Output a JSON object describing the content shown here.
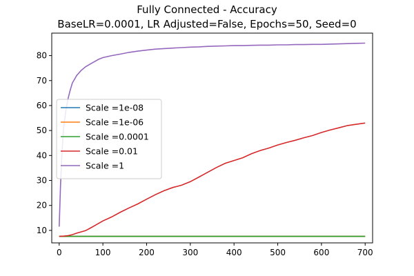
{
  "chart_data": {
    "type": "line",
    "title": "Fully Connected - Accuracy",
    "subtitle": "BaseLR=0.0001, LR Adjusted=False, Epochs=50, Seed=0",
    "xlabel": "",
    "ylabel": "",
    "xlim": [
      -17,
      717
    ],
    "ylim": [
      5.0,
      89.0
    ],
    "xticks": [
      0,
      100,
      200,
      300,
      400,
      500,
      600,
      700
    ],
    "yticks": [
      10,
      20,
      30,
      40,
      50,
      60,
      70,
      80
    ],
    "grid": false,
    "legend_position": "center-left",
    "series": [
      {
        "name": "Scale =1e-08",
        "color": "#1f77b4",
        "x": [
          0,
          700
        ],
        "y": [
          7.6,
          7.6
        ]
      },
      {
        "name": "Scale =1e-06",
        "color": "#ff7f0e",
        "x": [
          0,
          700
        ],
        "y": [
          7.6,
          7.6
        ]
      },
      {
        "name": "Scale =0.0001",
        "color": "#2ca02c",
        "x": [
          0,
          700
        ],
        "y": [
          7.6,
          7.6
        ]
      },
      {
        "name": "Scale =0.01",
        "color": "#d62728",
        "x": [
          0,
          10,
          20,
          30,
          40,
          50,
          60,
          70,
          80,
          90,
          100,
          120,
          140,
          160,
          180,
          200,
          220,
          240,
          260,
          280,
          300,
          320,
          340,
          360,
          380,
          400,
          420,
          440,
          460,
          480,
          500,
          520,
          540,
          560,
          580,
          600,
          620,
          640,
          660,
          680,
          700
        ],
        "y": [
          7.6,
          7.7,
          7.9,
          8.3,
          8.9,
          9.4,
          9.9,
          10.8,
          11.8,
          12.8,
          13.8,
          15.4,
          17.3,
          19.0,
          20.6,
          22.5,
          24.3,
          25.9,
          27.2,
          28.1,
          29.5,
          31.4,
          33.3,
          35.2,
          36.9,
          38.0,
          39.1,
          40.7,
          42.0,
          43.0,
          44.2,
          45.2,
          46.1,
          47.1,
          48.0,
          49.2,
          50.2,
          51.1,
          52.0,
          52.5,
          53.0
        ]
      },
      {
        "name": "Scale =1",
        "color": "#9467bd",
        "x": [
          0,
          3,
          6,
          10,
          15,
          20,
          25,
          30,
          40,
          50,
          60,
          70,
          80,
          90,
          100,
          120,
          140,
          160,
          180,
          200,
          220,
          240,
          260,
          280,
          300,
          320,
          340,
          360,
          380,
          400,
          420,
          440,
          460,
          480,
          500,
          520,
          540,
          560,
          580,
          600,
          620,
          640,
          660,
          680,
          700
        ],
        "y": [
          11.5,
          28.0,
          40.0,
          51.0,
          57.5,
          62.5,
          66.0,
          69.0,
          72.0,
          74.0,
          75.5,
          76.5,
          77.5,
          78.5,
          79.2,
          80.0,
          80.6,
          81.3,
          81.8,
          82.2,
          82.6,
          82.8,
          83.0,
          83.2,
          83.4,
          83.5,
          83.7,
          83.8,
          83.9,
          84.0,
          84.0,
          84.1,
          84.2,
          84.2,
          84.3,
          84.3,
          84.4,
          84.4,
          84.5,
          84.5,
          84.6,
          84.7,
          84.8,
          84.9,
          85.0
        ]
      }
    ]
  }
}
